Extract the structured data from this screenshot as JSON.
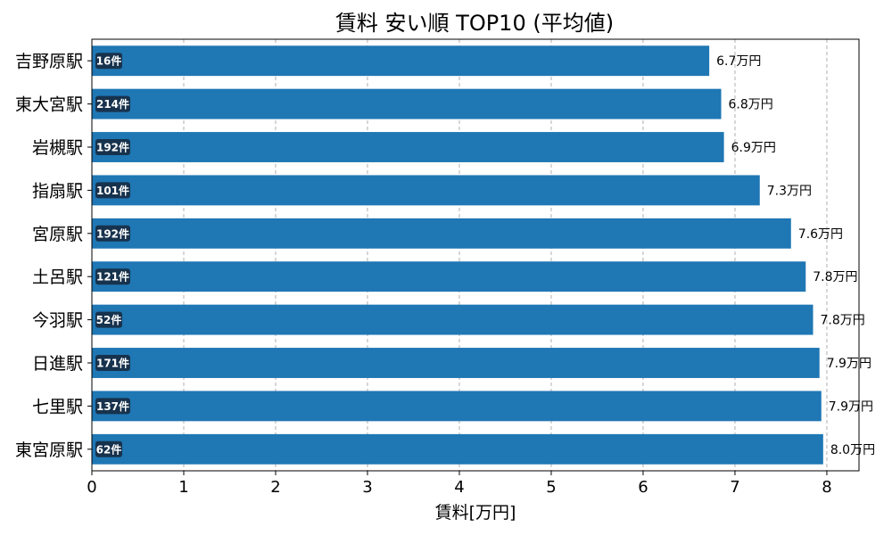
{
  "chart_data": {
    "type": "bar",
    "orientation": "horizontal",
    "title": "賃料 安い順 TOP10 (平均値)",
    "xlabel": "賃料[万円]",
    "ylabel": "",
    "xlim": [
      0,
      8.35
    ],
    "xticks": [
      "0",
      "1",
      "2",
      "3",
      "4",
      "5",
      "6",
      "7",
      "8"
    ],
    "grid": "x-dashed",
    "bar_color": "#1f77b4",
    "badge_color": "#17324d",
    "categories": [
      "吉野原駅",
      "東大宮駅",
      "岩槻駅",
      "指扇駅",
      "宮原駅",
      "土呂駅",
      "今羽駅",
      "日進駅",
      "七里駅",
      "東宮原駅"
    ],
    "values": [
      6.72,
      6.85,
      6.88,
      7.27,
      7.61,
      7.77,
      7.85,
      7.92,
      7.94,
      7.96
    ],
    "value_labels": [
      "6.7万円",
      "6.8万円",
      "6.9万円",
      "7.3万円",
      "7.6万円",
      "7.8万円",
      "7.8万円",
      "7.9万円",
      "7.9万円",
      "8.0万円"
    ],
    "count_labels": [
      "16件",
      "214件",
      "192件",
      "101件",
      "192件",
      "121件",
      "52件",
      "171件",
      "137件",
      "62件"
    ]
  }
}
